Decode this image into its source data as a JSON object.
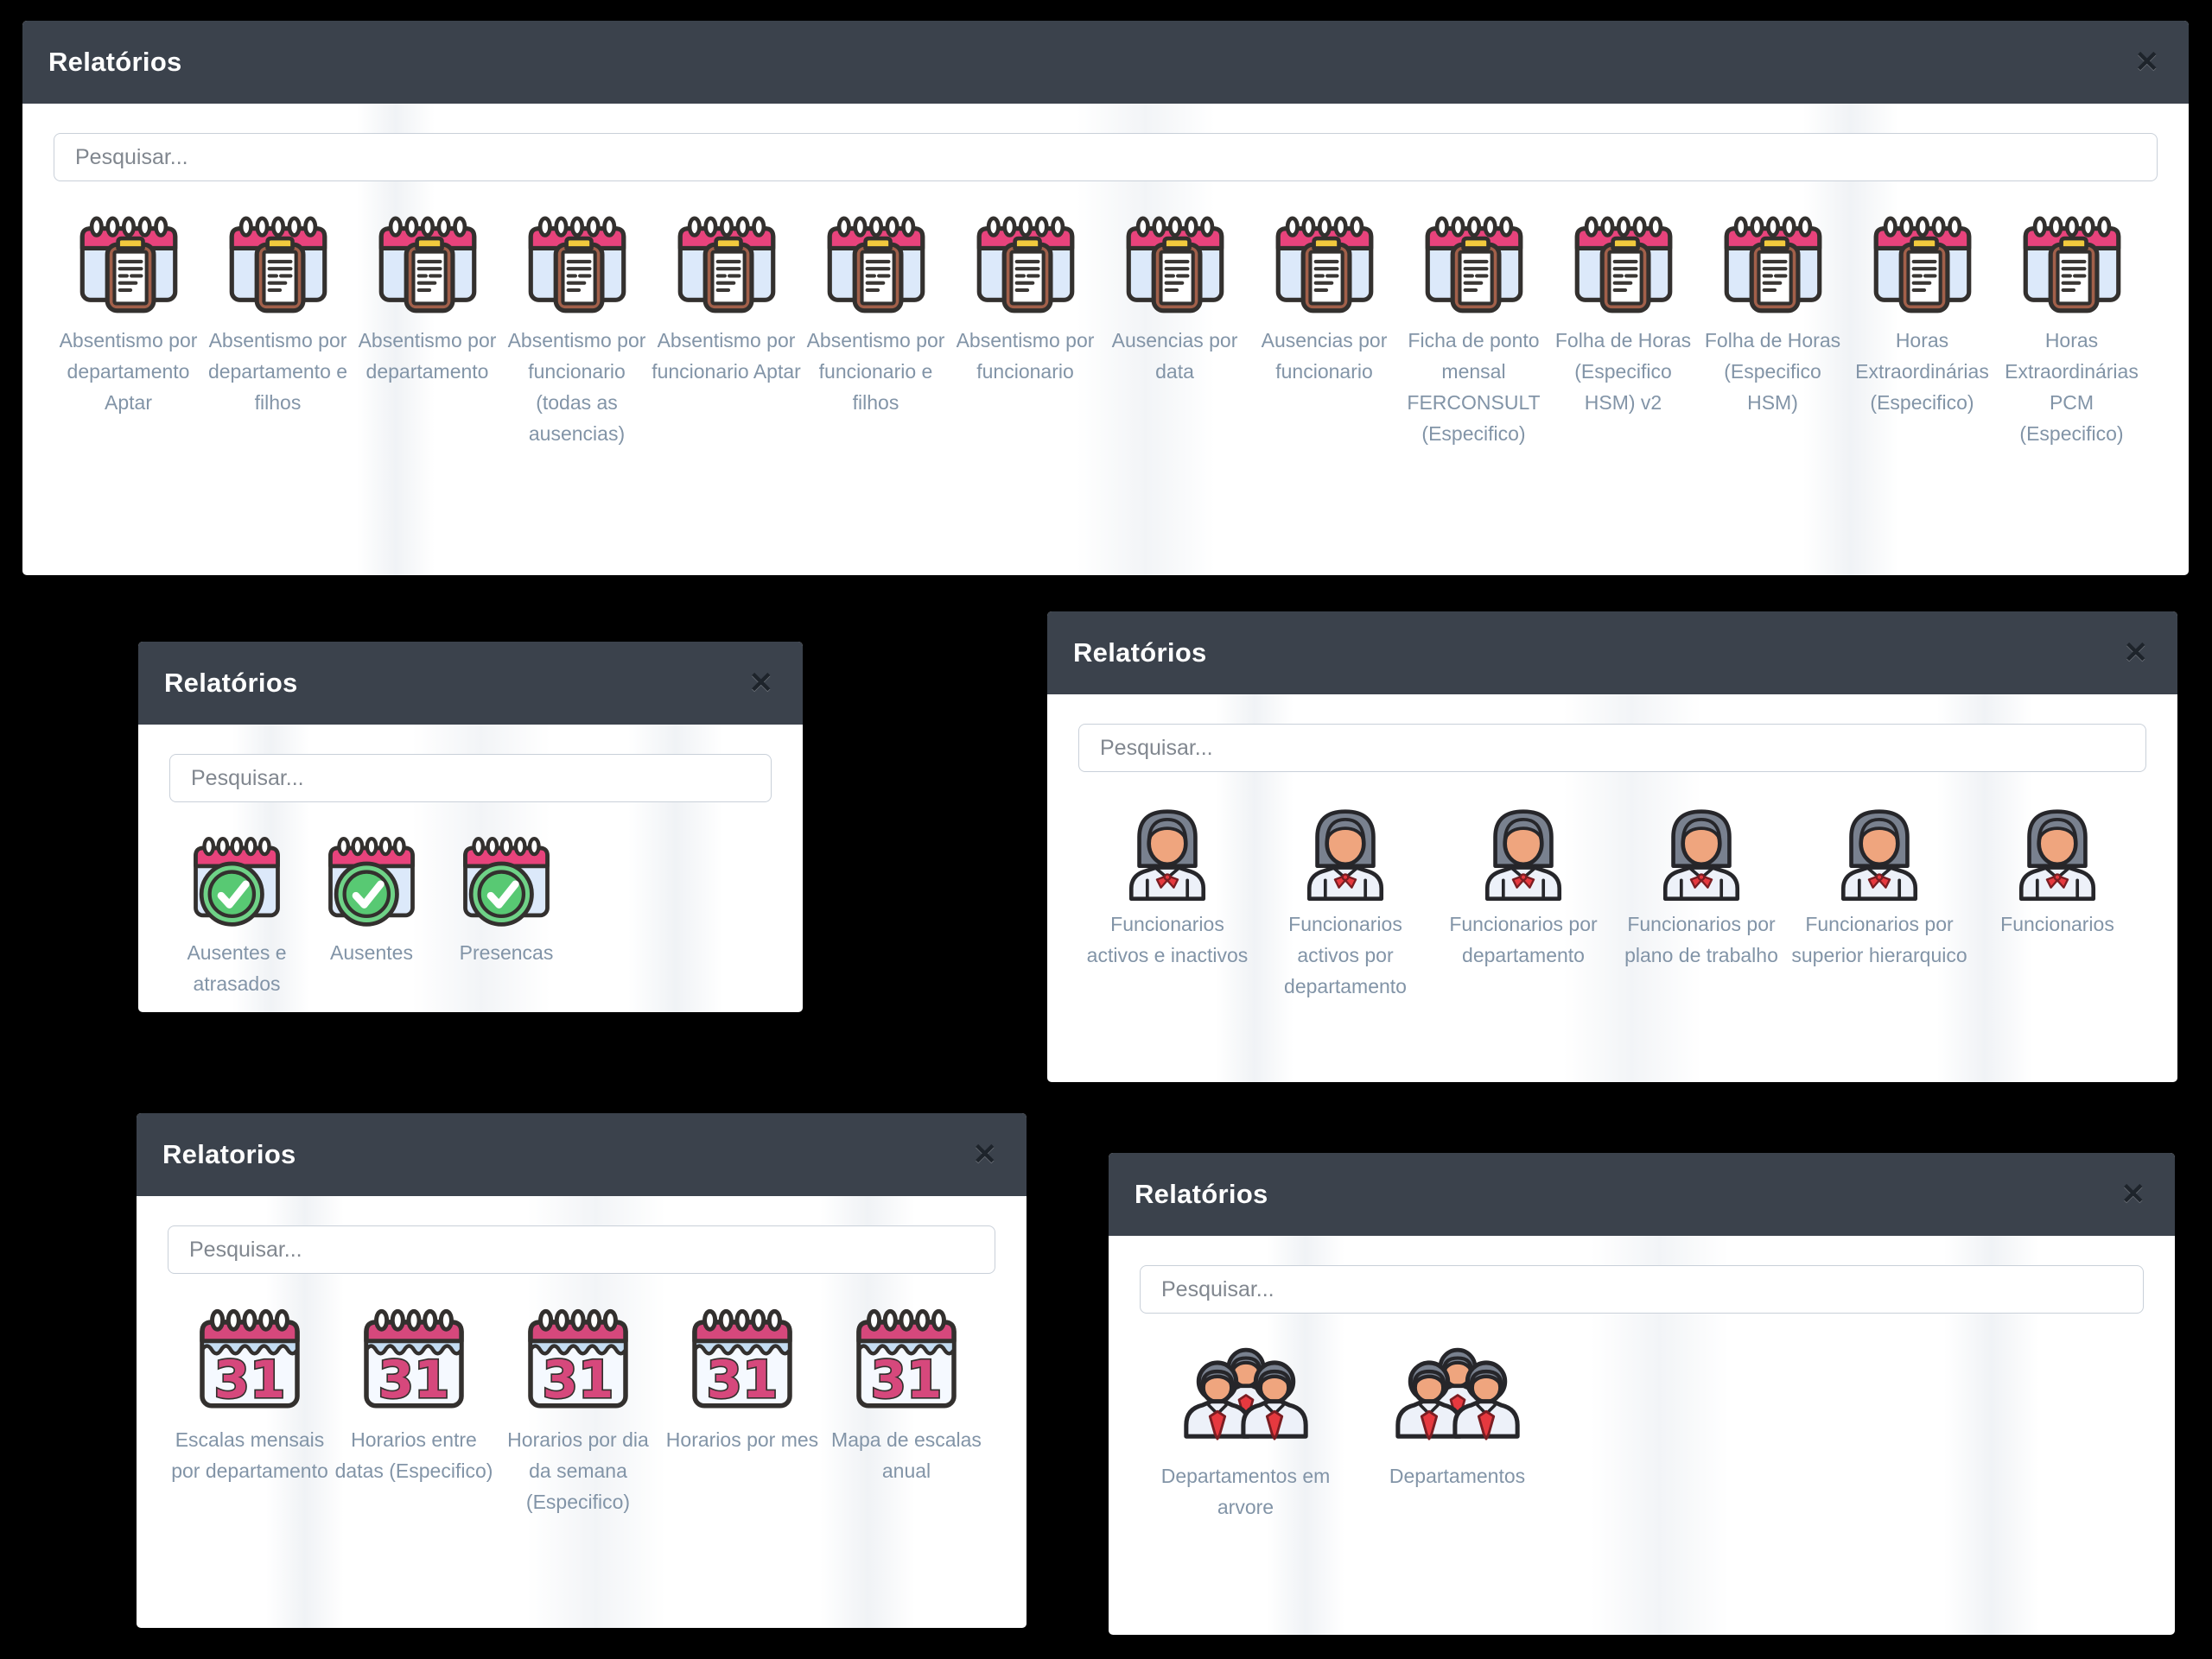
{
  "icons": {
    "close": "✕"
  },
  "colors": {
    "page_bg": "#000000",
    "header_bg": "#3b424c",
    "accent_pink": "#e8437c",
    "label_text": "#8294a7",
    "check_green": "#58c973",
    "tie_red": "#e6393f"
  },
  "modals": [
    {
      "title": "Relatórios",
      "search_placeholder": "Pesquisar...",
      "icon": "report-icon",
      "items": [
        "Absentismo por departamento Aptar",
        "Absentismo por departamento e filhos",
        "Absentismo por departamento",
        "Absentismo por funcionario (todas as ausencias)",
        "Absentismo por funcionario Aptar",
        "Absentismo por funcionario e filhos",
        "Absentismo por funcionario",
        "Ausencias por data",
        "Ausencias por funcionario",
        "Ficha de ponto mensal FERCONSULT (Especifico)",
        "Folha de Horas (Especifico HSM) v2",
        "Folha de Horas (Especifico HSM)",
        "Horas Extraordinárias (Especifico)",
        "Horas Extraordinárias PCM (Especifico)"
      ]
    },
    {
      "title": "Relatórios",
      "search_placeholder": "Pesquisar...",
      "icon": "attendance-icon",
      "items": [
        "Ausentes e atrasados",
        "Ausentes",
        "Presencas"
      ]
    },
    {
      "title": "Relatórios",
      "search_placeholder": "Pesquisar...",
      "icon": "employee-icon",
      "items": [
        "Funcionarios activos e inactivos",
        "Funcionarios activos por departamento",
        "Funcionarios por departamento",
        "Funcionarios por plano de trabalho",
        "Funcionarios por superior hierarquico",
        "Funcionarios"
      ]
    },
    {
      "title": "Relatorios",
      "search_placeholder": "Pesquisar...",
      "icon": "schedule-icon",
      "items": [
        "Escalas mensais por departamento",
        "Horarios entre datas (Especifico)",
        "Horarios por dia da semana (Especifico)",
        "Horarios por mes",
        "Mapa de escalas anual"
      ]
    },
    {
      "title": "Relatórios",
      "search_placeholder": "Pesquisar...",
      "icon": "department-icon",
      "items": [
        "Departamentos em arvore",
        "Departamentos"
      ]
    }
  ]
}
